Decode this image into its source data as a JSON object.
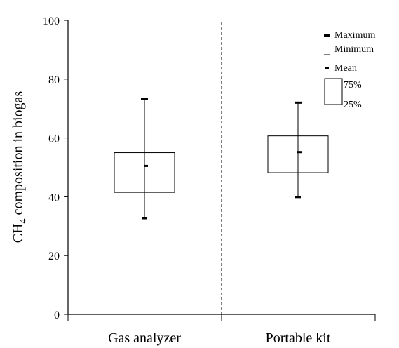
{
  "chart_data": {
    "type": "box",
    "ylabel_main": "CH",
    "ylabel_sub": "4",
    "ylabel_rest": " composition in biogas",
    "ylim": [
      0,
      100
    ],
    "yticks": [
      "0",
      "20",
      "40",
      "60",
      "80",
      "100"
    ],
    "categories": [
      "Gas analyzer",
      "Portable kit"
    ],
    "series": [
      {
        "category": "Gas analyzer",
        "max": 73.3,
        "min": 32.7,
        "mean": 50.5,
        "q75": 55.0,
        "q25": 41.5
      },
      {
        "category": "Portable kit",
        "max": 72.0,
        "min": 39.9,
        "mean": 55.2,
        "q75": 60.7,
        "q25": 48.2
      }
    ],
    "legend": {
      "position": "top-right",
      "max_label": "Maximum",
      "min_label": "Minimum",
      "mean_label": "Mean",
      "q75_label": "75%",
      "q25_label": "25%"
    },
    "grid": false,
    "divider": "dashed"
  }
}
